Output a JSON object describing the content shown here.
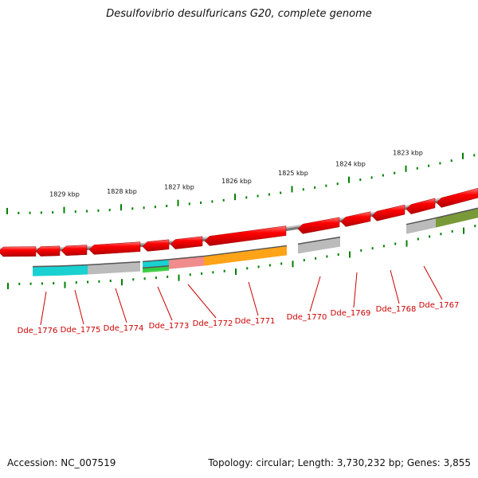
{
  "title": "Desulfovibrio desulfuricans G20, complete genome",
  "footer": {
    "accession": "Accession: NC_007519",
    "summary": "Topology: circular; Length: 3,730,232 bp; Genes: 3,855"
  },
  "colors": {
    "forward_gene": "#ff0000",
    "tick": "#008000",
    "genome_line": "#808080",
    "label": "#cc0000"
  },
  "ruler": [
    {
      "label": "1829 kbp",
      "kbp": 1829
    },
    {
      "label": "1828 kbp",
      "kbp": 1828
    },
    {
      "label": "1827 kbp",
      "kbp": 1827
    },
    {
      "label": "1826 kbp",
      "kbp": 1826
    },
    {
      "label": "1825 kbp",
      "kbp": 1825
    },
    {
      "label": "1824 kbp",
      "kbp": 1824
    },
    {
      "label": "1823 kbp",
      "kbp": 1823
    }
  ],
  "genes": [
    {
      "label": "Dde_1776",
      "cog_color": "#00cccc"
    },
    {
      "label": "Dde_1775",
      "cog_color": "#00cccc"
    },
    {
      "label": "Dde_1774",
      "cog_color": "#b4b4b4"
    },
    {
      "label": "Dde_1773",
      "cog_color": "#00cccc"
    },
    {
      "label": "Dde_1772",
      "cog_color": "#f08080"
    },
    {
      "label": "Dde_1771",
      "cog_color": "#ff9900"
    },
    {
      "label": "Dde_1770",
      "cog_color": "#b4b4b4"
    },
    {
      "label": "Dde_1769",
      "cog_color": ""
    },
    {
      "label": "Dde_1768",
      "cog_color": ""
    },
    {
      "label": "Dde_1767",
      "cog_color": "#b4b4b4"
    }
  ]
}
